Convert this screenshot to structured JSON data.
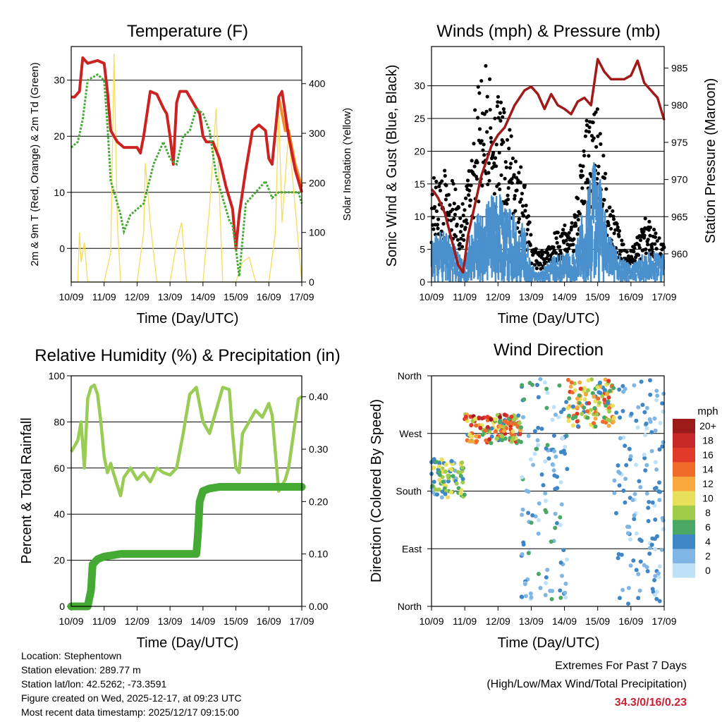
{
  "charts": {
    "temperature": {
      "title": "Temperature (F)",
      "ylabel": "2m & 9m T (Red, Orange) & 2m Td (Green)",
      "y2label": "Solar Insolation (Yellow)",
      "xlabel": "Time (Day/UTC)",
      "yticks": [
        "30",
        "20",
        "10",
        "0"
      ],
      "y2ticks": [
        "400",
        "300",
        "200",
        "100",
        "0"
      ]
    },
    "winds": {
      "title": "Winds (mph) & Pressure (mb)",
      "ylabel": "Sonic Wind & Gust (Blue, Black)",
      "y2label": "Station Pressure (Maroon)",
      "xlabel": "Time (Day/UTC)",
      "yticks": [
        "30",
        "25",
        "20",
        "15",
        "10",
        "5",
        "0"
      ],
      "y2ticks": [
        "985",
        "980",
        "975",
        "970",
        "965",
        "960"
      ]
    },
    "humidity": {
      "title": "Relative Humidity (%) & Precipitation (in)",
      "ylabel": "Percent & Total Rainfall",
      "xlabel": "Time (Day/UTC)",
      "yticks": [
        "100",
        "80",
        "60",
        "40",
        "20",
        "0"
      ],
      "y2ticks": [
        "0.40",
        "0.30",
        "0.20",
        "0.10",
        "0.00"
      ]
    },
    "direction": {
      "title": "Wind Direction",
      "ylabel": "Direction (Colored By Speed)",
      "xlabel": "Time (Day/UTC)",
      "yticks": [
        "North",
        "West",
        "South",
        "East",
        "North"
      ],
      "colorbar_title": "mph",
      "colorbar_labels": [
        "20+",
        "18",
        "16",
        "14",
        "12",
        "10",
        "8",
        "6",
        "4",
        "2",
        "0"
      ]
    },
    "xticks": [
      "10/09",
      "11/09",
      "12/09",
      "13/09",
      "14/09",
      "15/09",
      "16/09",
      "17/09"
    ]
  },
  "info": {
    "location": "Location: Stephentown",
    "elevation": "Station elevation: 289.77 m",
    "latlon": "Station lat/lon: 42.5262; -73.3591",
    "created": "Figure created on Wed, 2025-12-17, at 09:23 UTC",
    "recent": "Most recent data timestamp: 2025/12/17 09:15:00"
  },
  "extremes": {
    "title": "Extremes For Past 7 Days",
    "subtitle": "(High/Low/Max Wind/Total Precipitation)",
    "values": "34.3/0/16/0.23"
  },
  "chart_data": [
    {
      "type": "line",
      "title": "Temperature (F)",
      "xlabel": "Time (Day/UTC)",
      "ylabel": "2m & 9m T (Red, Orange) & 2m Td (Green)",
      "y2label": "Solar Insolation (Yellow)",
      "x_range_days": [
        0,
        7
      ],
      "ylim": [
        -6,
        36
      ],
      "y2lim": [
        0,
        475
      ],
      "colors": {
        "t2m": "#cc2222",
        "t9m": "#f0902a",
        "td": "#44aa33",
        "solar": "#f5dc5a"
      },
      "series": [
        {
          "name": "2m T",
          "x": [
            0,
            0.1,
            0.25,
            0.35,
            0.5,
            0.8,
            1.0,
            1.1,
            1.2,
            1.4,
            1.6,
            1.8,
            2.0,
            2.1,
            2.2,
            2.4,
            2.6,
            2.8,
            2.9,
            3.0,
            3.1,
            3.2,
            3.3,
            3.5,
            3.7,
            3.9,
            4.0,
            4.1,
            4.3,
            4.5,
            4.7,
            4.9,
            5.0,
            5.1,
            5.3,
            5.5,
            5.7,
            5.9,
            6.0,
            6.1,
            6.3,
            6.4,
            6.5,
            6.6,
            6.8,
            7.0
          ],
          "values": [
            27,
            27,
            28,
            34,
            33,
            33.5,
            33,
            28,
            21,
            19,
            18,
            18,
            18,
            17,
            20,
            28,
            27.5,
            25,
            24,
            20,
            15,
            26,
            28,
            28,
            26,
            24,
            20,
            19,
            19,
            16,
            11,
            7,
            0,
            6,
            14,
            21,
            22,
            21,
            16,
            15,
            27,
            28,
            24,
            20,
            14,
            10
          ]
        },
        {
          "name": "9m T",
          "x": [
            6.3,
            6.5,
            6.6,
            6.8,
            7.0
          ],
          "values": [
            27,
            21,
            21,
            15,
            11
          ]
        },
        {
          "name": "2m Td",
          "x": [
            0,
            0.2,
            0.35,
            0.5,
            0.8,
            1.0,
            1.1,
            1.2,
            1.4,
            1.5,
            1.6,
            1.8,
            2.0,
            2.2,
            2.5,
            2.8,
            3.0,
            3.2,
            3.4,
            3.6,
            3.8,
            4.0,
            4.2,
            4.4,
            4.6,
            4.8,
            4.9,
            5.0,
            5.1,
            5.3,
            5.6,
            5.9,
            6.1,
            6.3,
            6.6,
            6.9,
            7.0
          ],
          "values": [
            18,
            19,
            23,
            30,
            31,
            30,
            22,
            12,
            8,
            6,
            3,
            6,
            7,
            8,
            15,
            19,
            16,
            15,
            20,
            21,
            25,
            24,
            21,
            13,
            9,
            5,
            4,
            0,
            -5,
            8,
            10,
            12,
            9,
            10,
            10,
            10,
            8
          ]
        },
        {
          "name": "Solar",
          "x": [
            0,
            0.2,
            0.25,
            0.3,
            0.4,
            0.5,
            1.0,
            1.2,
            1.3,
            1.4,
            1.5,
            1.7,
            2.0,
            2.2,
            2.25,
            2.4,
            2.6,
            3.0,
            3.2,
            3.35,
            3.5,
            4.0,
            4.2,
            4.4,
            4.6,
            5.0,
            5.2,
            5.4,
            5.6,
            6.0,
            6.2,
            6.3,
            6.4,
            6.6,
            7.0
          ],
          "values": [
            0,
            0,
            100,
            40,
            80,
            0,
            0,
            60,
            460,
            120,
            0,
            0,
            0,
            100,
            240,
            120,
            0,
            0,
            80,
            120,
            0,
            0,
            150,
            350,
            0,
            0,
            40,
            50,
            0,
            0,
            100,
            350,
            120,
            300,
            0
          ]
        }
      ]
    },
    {
      "type": "line",
      "title": "Winds (mph) & Pressure (mb)",
      "xlabel": "Time (Day/UTC)",
      "ylabel": "Sonic Wind & Gust (Blue, Black)",
      "y2label": "Station Pressure (Maroon)",
      "x_range_days": [
        0,
        7
      ],
      "ylim": [
        0,
        36
      ],
      "y2lim": [
        956.2,
        987.9
      ],
      "colors": {
        "wind": "#4a90cc",
        "gust": "#000000",
        "pressure": "#a01a1a"
      },
      "series": [
        {
          "name": "Station Pressure",
          "axis": "y2",
          "x": [
            0,
            0.1,
            0.2,
            0.4,
            0.6,
            0.8,
            0.95,
            1.1,
            1.3,
            1.5,
            1.8,
            2.0,
            2.2,
            2.5,
            2.8,
            3.0,
            3.2,
            3.4,
            3.6,
            3.8,
            4.0,
            4.2,
            4.4,
            4.6,
            4.8,
            5.0,
            5.2,
            5.4,
            5.6,
            5.8,
            6.0,
            6.2,
            6.4,
            6.6,
            6.8,
            7.0
          ],
          "values": [
            968.7,
            968.2,
            967.5,
            965.5,
            962,
            958.5,
            957.5,
            962.5,
            966.5,
            970.5,
            974.5,
            976,
            977,
            980,
            982,
            982.5,
            981.5,
            979.5,
            981.5,
            980,
            979.5,
            978.8,
            980.5,
            981,
            980,
            986.2,
            984.5,
            983.5,
            983.5,
            983.5,
            984,
            986,
            983,
            982,
            981,
            978
          ]
        },
        {
          "name": "Sonic Wind (mean)",
          "x": [
            0,
            0.5,
            0.8,
            1.0,
            1.2,
            1.5,
            2.0,
            2.4,
            2.8,
            3.0,
            3.2,
            3.5,
            3.8,
            4.0,
            4.3,
            4.6,
            4.9,
            5.1,
            5.3,
            5.6,
            5.9,
            6.1,
            6.4,
            6.7,
            7.0
          ],
          "values": [
            5,
            5,
            3,
            2,
            6,
            8,
            9,
            7,
            6,
            2,
            1,
            2,
            3,
            3,
            3,
            8,
            12,
            10,
            5,
            3,
            2,
            2,
            3,
            3,
            3
          ]
        },
        {
          "name": "Gust (mean)",
          "x": [
            0,
            0.5,
            0.8,
            1.0,
            1.2,
            1.5,
            2.0,
            2.4,
            2.8,
            3.0,
            3.2,
            3.5,
            3.8,
            4.0,
            4.3,
            4.6,
            4.9,
            5.1,
            5.3,
            5.6,
            5.9,
            6.1,
            6.4,
            6.7,
            7.0
          ],
          "values": [
            11,
            12,
            9,
            8,
            16,
            24,
            20,
            16,
            11,
            5,
            3,
            4,
            6,
            6,
            7,
            17,
            20,
            17,
            9,
            6,
            3,
            4,
            7,
            6,
            4
          ]
        }
      ]
    },
    {
      "type": "line",
      "title": "Relative Humidity (%) & Precipitation (in)",
      "xlabel": "Time (Day/UTC)",
      "ylabel": "Percent & Total Rainfall",
      "x_range_days": [
        0,
        7
      ],
      "ylim": [
        0,
        100
      ],
      "y2lim": [
        0,
        0.44
      ],
      "colors": {
        "rh": "#99cc55",
        "precip": "#44aa33"
      },
      "series": [
        {
          "name": "Relative Humidity",
          "x": [
            0,
            0.2,
            0.3,
            0.4,
            0.5,
            0.6,
            0.7,
            0.8,
            0.9,
            1.0,
            1.1,
            1.2,
            1.3,
            1.5,
            1.6,
            1.8,
            2.0,
            2.2,
            2.4,
            2.6,
            2.8,
            3.0,
            3.2,
            3.4,
            3.6,
            3.8,
            4.0,
            4.2,
            4.4,
            4.6,
            4.8,
            4.9,
            5.0,
            5.1,
            5.2,
            5.4,
            5.6,
            5.8,
            6.0,
            6.1,
            6.3,
            6.5,
            6.6,
            6.8,
            6.9,
            7.0
          ],
          "values": [
            67,
            72,
            80,
            60,
            90,
            95,
            96,
            92,
            80,
            65,
            58,
            62,
            57,
            48,
            56,
            60,
            55,
            58,
            54,
            60,
            58,
            57,
            60,
            75,
            92,
            95,
            80,
            75,
            85,
            95,
            94,
            75,
            60,
            58,
            75,
            80,
            85,
            82,
            88,
            83,
            50,
            55,
            60,
            80,
            90,
            91
          ]
        },
        {
          "name": "Total Precipitation",
          "axis": "y2",
          "x": [
            0,
            0.5,
            0.6,
            0.65,
            0.8,
            1.0,
            1.5,
            2.0,
            2.5,
            3.0,
            3.5,
            3.8,
            3.85,
            3.9,
            4.0,
            4.2,
            4.5,
            5.0,
            6.0,
            7.0
          ],
          "values": [
            0,
            0,
            0.03,
            0.08,
            0.09,
            0.095,
            0.1,
            0.1,
            0.1,
            0.1,
            0.1,
            0.1,
            0.14,
            0.2,
            0.22,
            0.225,
            0.228,
            0.228,
            0.228,
            0.228
          ]
        }
      ]
    },
    {
      "type": "scatter",
      "title": "Wind Direction",
      "xlabel": "Time (Day/UTC)",
      "ylabel": "Direction (Colored By Speed)",
      "x_range_days": [
        0,
        7
      ],
      "ylim": [
        0,
        360
      ],
      "yticks": [
        "North",
        "East",
        "South",
        "West",
        "North"
      ],
      "colorbar": {
        "title": "mph",
        "labels": [
          "20+",
          "18",
          "16",
          "14",
          "12",
          "10",
          "8",
          "6",
          "4",
          "2",
          "0"
        ],
        "colors": [
          "#9b1b1b",
          "#c82828",
          "#e23a2a",
          "#f06a2a",
          "#f8a93e",
          "#e8e05a",
          "#9fcd4a",
          "#4aa864",
          "#3f86c6",
          "#7fb6e3",
          "#bfe1f7"
        ]
      },
      "clusters": [
        {
          "x": [
            0,
            1
          ],
          "dir": [
            170,
            230
          ],
          "speed": [
            2,
            11
          ]
        },
        {
          "x": [
            1,
            2.7
          ],
          "dir": [
            255,
            300
          ],
          "speed": [
            4,
            20
          ]
        },
        {
          "x": [
            2.7,
            4.1
          ],
          "dir": [
            0,
            360
          ],
          "speed": [
            0,
            6
          ]
        },
        {
          "x": [
            4.1,
            5.5
          ],
          "dir": [
            280,
            355
          ],
          "speed": [
            4,
            16
          ]
        },
        {
          "x": [
            5.5,
            7
          ],
          "dir": [
            0,
            360
          ],
          "speed": [
            0,
            5
          ]
        }
      ]
    }
  ]
}
